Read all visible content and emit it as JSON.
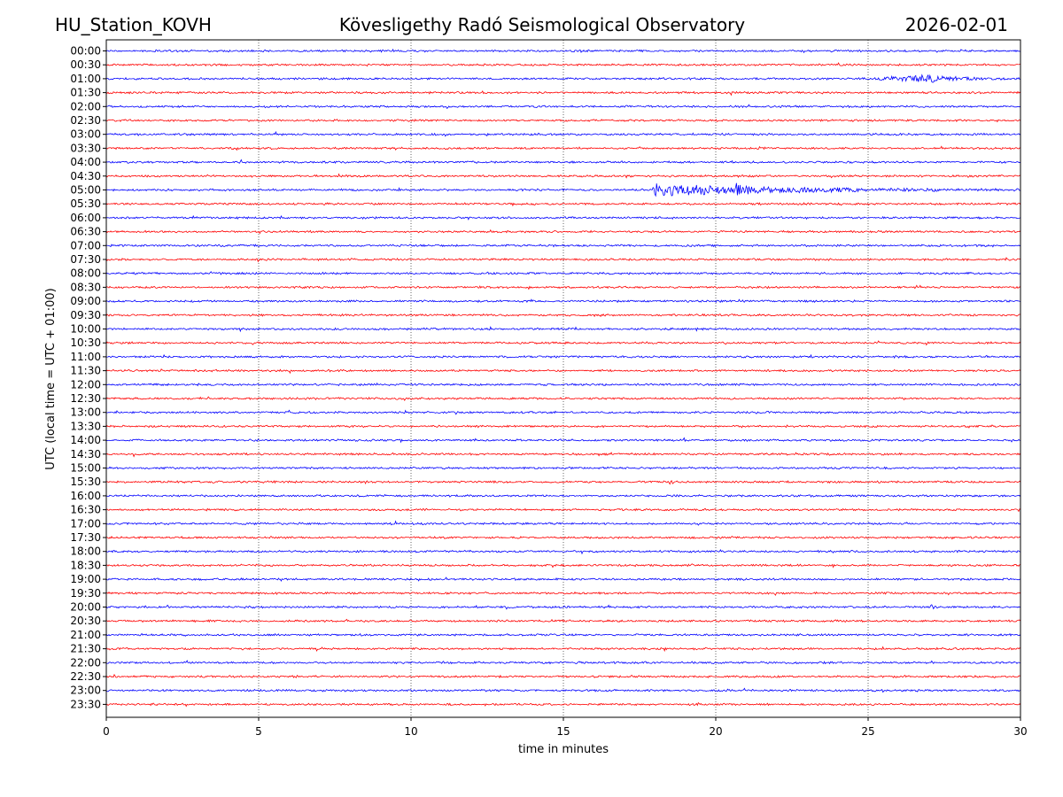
{
  "header": {
    "station": "HU_Station_KOVH",
    "observatory": "Kövesligethy Radó Seismological Observatory",
    "date": "2026-02-01"
  },
  "chart_data": {
    "type": "line",
    "title": "Kövesligethy Radó Seismological Observatory",
    "xlabel": "time in minutes",
    "ylabel": "UTC (local time = UTC + 01:00)",
    "xlim": [
      0,
      30
    ],
    "x_ticks": [
      0,
      5,
      10,
      15,
      20,
      25,
      30
    ],
    "x_tick_labels": [
      "0",
      "5",
      "10",
      "15",
      "20",
      "25",
      "30"
    ],
    "grid": {
      "x": "dotted",
      "y": "off"
    },
    "colors": {
      "even_rows": "#0000ff",
      "odd_rows": "#ff0000",
      "grid": "#000000"
    },
    "rows": [
      "00:00",
      "00:30",
      "01:00",
      "01:30",
      "02:00",
      "02:30",
      "03:00",
      "03:30",
      "04:00",
      "04:30",
      "05:00",
      "05:30",
      "06:00",
      "06:30",
      "07:00",
      "07:30",
      "08:00",
      "08:30",
      "09:00",
      "09:30",
      "10:00",
      "10:30",
      "11:00",
      "11:30",
      "12:00",
      "12:30",
      "13:00",
      "13:30",
      "14:00",
      "14:30",
      "15:00",
      "15:30",
      "16:00",
      "16:30",
      "17:00",
      "17:30",
      "18:00",
      "18:30",
      "19:00",
      "19:30",
      "20:00",
      "20:30",
      "21:00",
      "21:30",
      "22:00",
      "22:30",
      "23:00",
      "23:30"
    ],
    "noise_amplitude": 0.12,
    "events": [
      {
        "row": "01:00",
        "start_min": 25.0,
        "peak_min": 27.0,
        "end_min": 30.0,
        "amplitude": 0.45
      },
      {
        "row": "05:00",
        "start_min": 17.9,
        "peak_min": 18.0,
        "end_min": 30.0,
        "amplitude": 0.85
      },
      {
        "row": "05:00",
        "start_min": 20.6,
        "peak_min": 20.7,
        "end_min": 21.2,
        "amplitude": 0.55
      },
      {
        "row": "15:30",
        "start_min": 18.4,
        "peak_min": 18.5,
        "end_min": 18.8,
        "amplitude": 0.3
      },
      {
        "row": "20:00",
        "start_min": 27.0,
        "peak_min": 27.1,
        "end_min": 27.4,
        "amplitude": 0.3
      }
    ]
  }
}
